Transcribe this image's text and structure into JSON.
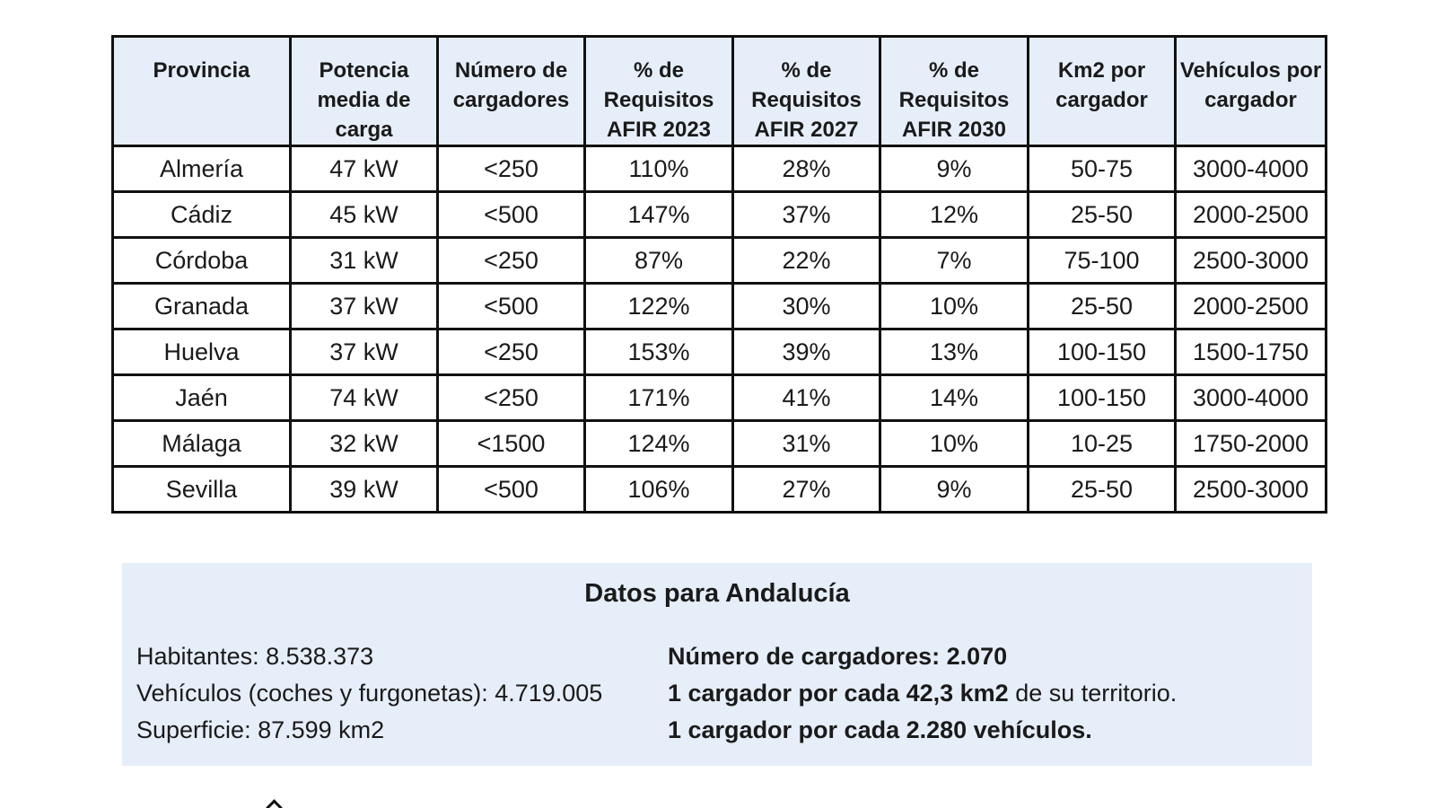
{
  "table": {
    "headers": [
      "Provincia",
      "Potencia media de carga",
      "Número de cargadores",
      "% de Requisitos AFIR 2023",
      "% de Requisitos AFIR 2027",
      "% de Requisitos AFIR 2030",
      "Km2 por cargador",
      "Vehículos por cargador"
    ],
    "rows": [
      [
        "Almería",
        "47 kW",
        "<250",
        "110%",
        "28%",
        "9%",
        "50-75",
        "3000-4000"
      ],
      [
        "Cádiz",
        "45 kW",
        "<500",
        "147%",
        "37%",
        "12%",
        "25-50",
        "2000-2500"
      ],
      [
        "Córdoba",
        "31 kW",
        "<250",
        "87%",
        "22%",
        "7%",
        "75-100",
        "2500-3000"
      ],
      [
        "Granada",
        "37 kW",
        "<500",
        "122%",
        "30%",
        "10%",
        "25-50",
        "2000-2500"
      ],
      [
        "Huelva",
        "37 kW",
        "<250",
        "153%",
        "39%",
        "13%",
        "100-150",
        "1500-1750"
      ],
      [
        "Jaén",
        "74 kW",
        "<250",
        "171%",
        "41%",
        "14%",
        "100-150",
        "3000-4000"
      ],
      [
        "Málaga",
        "32 kW",
        "<1500",
        "124%",
        "31%",
        "10%",
        "10-25",
        "1750-2000"
      ],
      [
        "Sevilla",
        "39 kW",
        "<500",
        "106%",
        "27%",
        "9%",
        "25-50",
        "2500-3000"
      ]
    ]
  },
  "summary": {
    "title": "Datos para Andalucía",
    "left": [
      "Habitantes: 8.538.373",
      "Vehículos (coches y furgonetas): 4.719.005",
      "Superficie: 87.599 km2"
    ],
    "right": {
      "line1_bold": "Número de cargadores: 2.070",
      "line2_bold": "1 cargador por cada 42,3 km2",
      "line2_rest": " de su territorio.",
      "line3_bold": "1 cargador por cada 2.280 vehículos."
    }
  },
  "colors": {
    "header_bg": "#e6eef9",
    "panel_bg": "#e6eef9",
    "border": "#111111"
  }
}
